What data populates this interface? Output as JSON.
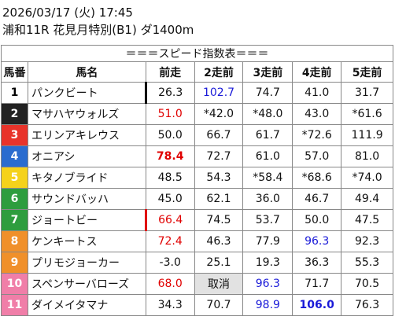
{
  "header": {
    "datetime": "2026/03/17 (火) 17:45",
    "race": "浦和11R 花見月特別(B1) ダ1400m"
  },
  "table": {
    "title": "＝＝＝スピード指数表＝＝＝",
    "columns": [
      "馬番",
      "馬名",
      "前走",
      "2走前",
      "3走前",
      "4走前",
      "5走前"
    ],
    "rows": [
      {
        "number": "1",
        "name": "パンクビート",
        "frame_color": "#ffffff",
        "number_color": "#000000",
        "marker": "#000000",
        "values": [
          "26.3",
          "102.7",
          "74.7",
          "41.0",
          "31.7"
        ],
        "styles": [
          null,
          "blue",
          null,
          null,
          null
        ]
      },
      {
        "number": "2",
        "name": "マサハヤウォルズ",
        "frame_color": "#222222",
        "number_color": "#ffffff",
        "values": [
          "51.0",
          "*42.0",
          "*48.0",
          "43.0",
          "*61.6"
        ],
        "styles": [
          "red",
          null,
          null,
          null,
          null
        ]
      },
      {
        "number": "3",
        "name": "エリンアキレウス",
        "frame_color": "#e8332a",
        "number_color": "#ffffff",
        "values": [
          "50.0",
          "66.7",
          "61.7",
          "*72.6",
          "111.9"
        ],
        "styles": [
          null,
          null,
          null,
          null,
          null
        ]
      },
      {
        "number": "4",
        "name": "オニアシ",
        "frame_color": "#2a6ccf",
        "number_color": "#ffffff",
        "values": [
          "78.4",
          "72.7",
          "61.0",
          "57.0",
          "81.0"
        ],
        "styles": [
          "red-bold",
          null,
          null,
          null,
          null
        ]
      },
      {
        "number": "5",
        "name": "キタノブライド",
        "frame_color": "#f5d21b",
        "number_color": "#ffffff",
        "values": [
          "48.5",
          "54.3",
          "*58.4",
          "*68.6",
          "*74.0"
        ],
        "styles": [
          null,
          null,
          null,
          null,
          null
        ]
      },
      {
        "number": "6",
        "name": "サウンドバッハ",
        "frame_color": "#2e9d3e",
        "number_color": "#ffffff",
        "values": [
          "45.0",
          "62.1",
          "36.0",
          "46.7",
          "49.4"
        ],
        "styles": [
          null,
          null,
          null,
          null,
          null
        ]
      },
      {
        "number": "7",
        "name": "ジョートビー",
        "frame_color": "#2e9d3e",
        "number_color": "#ffffff",
        "marker": "#e00000",
        "values": [
          "66.4",
          "74.5",
          "53.7",
          "50.0",
          "47.5"
        ],
        "styles": [
          "red",
          null,
          null,
          null,
          null
        ]
      },
      {
        "number": "8",
        "name": "ケンキートス",
        "frame_color": "#f0902a",
        "number_color": "#ffffff",
        "values": [
          "72.4",
          "46.3",
          "77.9",
          "96.3",
          "92.3"
        ],
        "styles": [
          "red",
          null,
          null,
          "blue",
          null
        ]
      },
      {
        "number": "9",
        "name": "プリモジョーカー",
        "frame_color": "#f0902a",
        "number_color": "#ffffff",
        "values": [
          "-3.0",
          "25.1",
          "19.3",
          "36.3",
          "55.3"
        ],
        "styles": [
          null,
          null,
          null,
          null,
          null
        ]
      },
      {
        "number": "10",
        "name": "スペンサーバローズ",
        "frame_color": "#f07ea8",
        "number_color": "#ffffff",
        "values": [
          "68.0",
          "取消",
          "96.3",
          "71.7",
          "70.5"
        ],
        "styles": [
          "red",
          "gray",
          "blue",
          null,
          null
        ]
      },
      {
        "number": "11",
        "name": "ダイメイタマナ",
        "frame_color": "#f07ea8",
        "number_color": "#ffffff",
        "values": [
          "34.3",
          "70.7",
          "98.9",
          "106.0",
          "76.3"
        ],
        "styles": [
          null,
          null,
          "blue",
          "blue-bold",
          null
        ]
      }
    ]
  }
}
